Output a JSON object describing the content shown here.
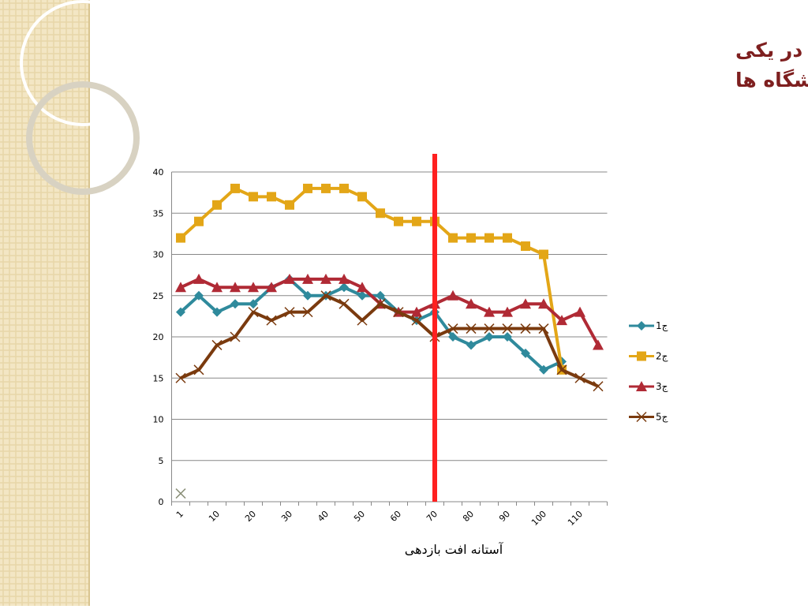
{
  "chart_data": {
    "type": "line",
    "title": "ارزیابی میزان حضوردانشجویان در یک کلاس مجازی در یکی از دانشگاه ها",
    "x_label": "آستانه افت بازدهی",
    "categories": [
      "1",
      null,
      "10",
      null,
      "20",
      null,
      "30",
      null,
      "40",
      null,
      "50",
      null,
      "60",
      null,
      "70",
      null,
      "80",
      null,
      "90",
      null,
      "100",
      null,
      "110",
      null
    ],
    "ylim": [
      0,
      40
    ],
    "yticks": [
      0,
      5,
      10,
      15,
      20,
      25,
      30,
      35,
      40
    ],
    "grid": true,
    "legend": "right",
    "series": [
      {
        "name": "ج1",
        "color": "#2f8a9c",
        "marker": "diamond",
        "values": [
          23,
          25,
          23,
          24,
          24,
          26,
          27,
          25,
          25,
          26,
          25,
          25,
          23,
          22,
          23,
          20,
          19,
          20,
          20,
          18,
          16,
          17,
          null,
          null
        ]
      },
      {
        "name": "ج2",
        "color": "#e3a617",
        "marker": "square",
        "values": [
          32,
          34,
          36,
          38,
          37,
          37,
          36,
          38,
          38,
          38,
          37,
          35,
          34,
          34,
          34,
          32,
          32,
          32,
          32,
          31,
          30,
          16,
          null,
          null
        ]
      },
      {
        "name": "ج3",
        "color": "#b02a35",
        "marker": "triangle",
        "values": [
          26,
          27,
          26,
          26,
          26,
          26,
          27,
          27,
          27,
          27,
          26,
          24,
          23,
          23,
          24,
          25,
          24,
          23,
          23,
          24,
          24,
          22,
          23,
          19
        ]
      },
      {
        "name": "ج5",
        "color": "#7a3a0e",
        "marker": "x",
        "values": [
          15,
          16,
          19,
          20,
          23,
          22,
          23,
          23,
          25,
          24,
          22,
          24,
          23,
          22,
          20,
          21,
          21,
          21,
          21,
          21,
          21,
          16,
          15,
          14
        ]
      }
    ],
    "extra_points": [
      {
        "index": 0,
        "value": 1,
        "color": "#8a8f78",
        "marker": "x"
      }
    ],
    "vline": {
      "index": 14,
      "color": "#ff2020"
    }
  }
}
